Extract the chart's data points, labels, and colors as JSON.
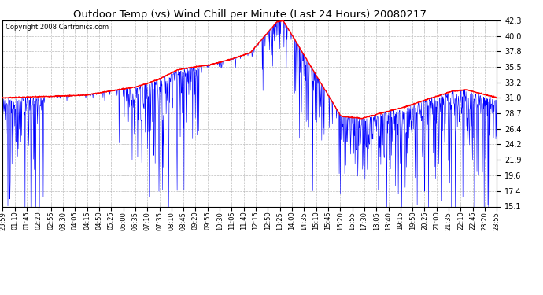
{
  "title": "Outdoor Temp (vs) Wind Chill per Minute (Last 24 Hours) 20080217",
  "copyright": "Copyright 2008 Cartronics.com",
  "background_color": "#ffffff",
  "plot_bg_color": "#ffffff",
  "grid_color": "#bbbbbb",
  "title_fontsize": 10,
  "ylim": [
    15.1,
    42.3
  ],
  "yticks": [
    15.1,
    17.4,
    19.6,
    21.9,
    24.2,
    26.4,
    28.7,
    31.0,
    33.2,
    35.5,
    37.8,
    40.0,
    42.3
  ],
  "temp_color": "#ff0000",
  "windchill_color": "#0000ff",
  "xtick_labels": [
    "23:59",
    "01:10",
    "01:45",
    "02:20",
    "02:55",
    "03:30",
    "04:05",
    "04:15",
    "04:50",
    "05:25",
    "06:00",
    "06:35",
    "07:10",
    "07:35",
    "08:10",
    "08:45",
    "09:20",
    "09:55",
    "10:30",
    "11:05",
    "11:40",
    "12:15",
    "12:50",
    "13:25",
    "14:00",
    "14:35",
    "15:10",
    "15:45",
    "16:20",
    "16:55",
    "17:30",
    "18:05",
    "18:40",
    "19:15",
    "19:50",
    "20:25",
    "21:00",
    "21:35",
    "22:10",
    "22:45",
    "23:20",
    "23:55"
  ]
}
